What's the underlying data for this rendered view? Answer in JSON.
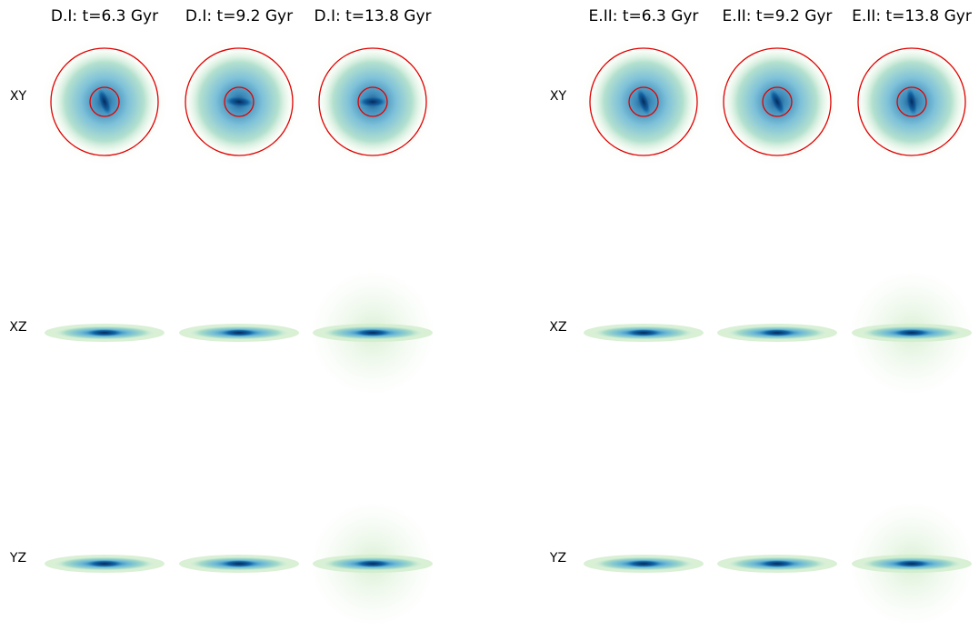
{
  "columns": [
    {
      "title": "D.I: t=6.3 Gyr"
    },
    {
      "title": "D.I: t=9.2 Gyr"
    },
    {
      "title": "D.I: t=13.8 Gyr"
    },
    {
      "title": "E.II: t=6.3 Gyr"
    },
    {
      "title": "E.II: t=9.2 Gyr"
    },
    {
      "title": "E.II: t=13.8 Gyr"
    }
  ],
  "rows": [
    "XY",
    "XZ",
    "YZ"
  ]
}
